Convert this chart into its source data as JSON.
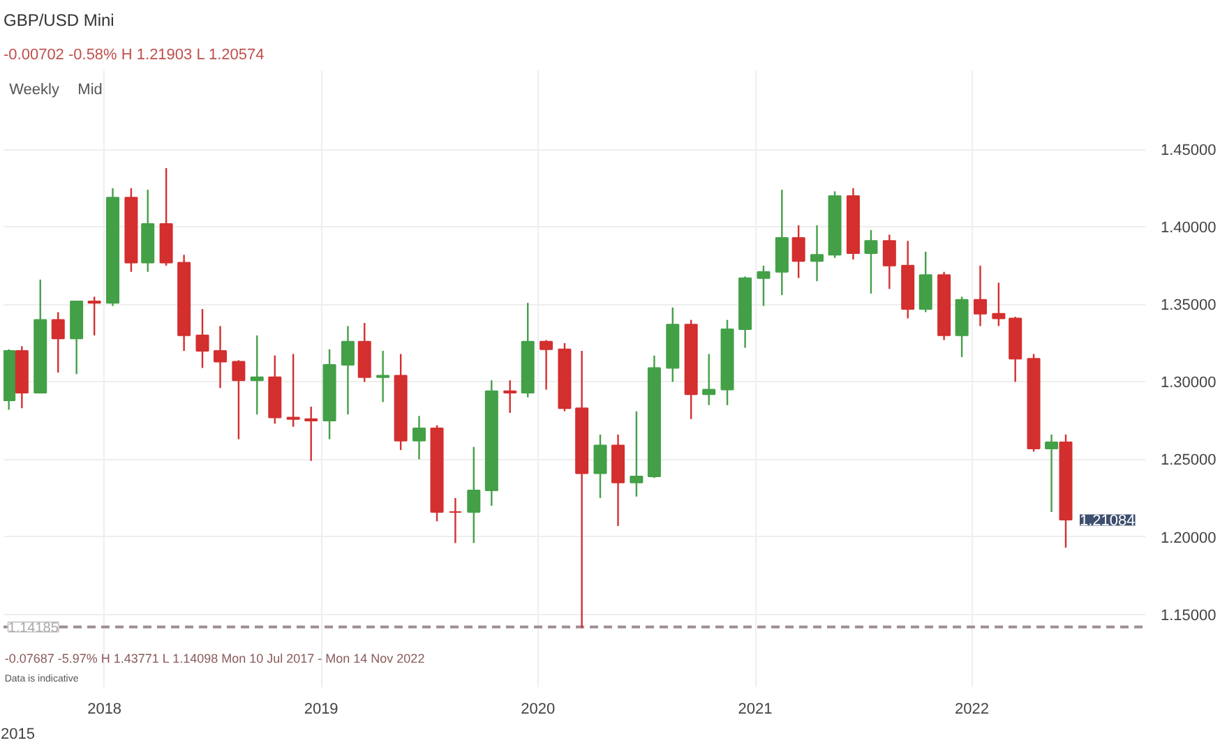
{
  "chart_data": {
    "type": "candlestick",
    "title": "GBP/USD Mini",
    "subtitle": "-0.00702  -0.58%  H 1.21903  L 1.20574",
    "annotations": [
      "Weekly",
      "Mid",
      "-0.07687  -5.97%  H 1.43771  L 1.14098  Mon 10 Jul 2017 - Mon 14 Nov 2022",
      "Data is indicative",
      "2015",
      {
        "text": "1.21084",
        "x": "2022-06-08",
        "y": 1.21084
      }
    ],
    "x": [
      "2017-07-24",
      "2017-08-15",
      "2017-09-15",
      "2017-10-15",
      "2017-11-15",
      "2017-12-15",
      "2018-01-15",
      "2018-02-15",
      "2018-03-15",
      "2018-04-15",
      "2018-05-15",
      "2018-06-15",
      "2018-07-15",
      "2018-08-15",
      "2018-09-15",
      "2018-10-15",
      "2018-11-15",
      "2018-12-15",
      "2019-01-15",
      "2019-02-15",
      "2019-03-15",
      "2019-04-15",
      "2019-05-15",
      "2019-06-15",
      "2019-07-15",
      "2019-08-15",
      "2019-09-15",
      "2019-10-15",
      "2019-11-15",
      "2019-12-15",
      "2020-01-15",
      "2020-02-15",
      "2020-03-15",
      "2020-04-15",
      "2020-05-15",
      "2020-06-15",
      "2020-07-15",
      "2020-08-15",
      "2020-09-15",
      "2020-10-15",
      "2020-11-15",
      "2020-12-15",
      "2021-01-15",
      "2021-02-15",
      "2021-03-15",
      "2021-04-15",
      "2021-05-15",
      "2021-06-15",
      "2021-07-15",
      "2021-08-15",
      "2021-09-15",
      "2021-10-15",
      "2021-11-15",
      "2021-12-15",
      "2022-01-15",
      "2022-02-15",
      "2022-03-15",
      "2022-04-15",
      "2022-05-15",
      "2022-06-08"
    ],
    "ohlc": [
      [
        1.288,
        1.321,
        1.282,
        1.32
      ],
      [
        1.32,
        1.323,
        1.283,
        1.293
      ],
      [
        1.293,
        1.366,
        1.293,
        1.34
      ],
      [
        1.34,
        1.345,
        1.306,
        1.328
      ],
      [
        1.328,
        1.352,
        1.305,
        1.352
      ],
      [
        1.352,
        1.355,
        1.33,
        1.351
      ],
      [
        1.351,
        1.425,
        1.349,
        1.419
      ],
      [
        1.419,
        1.425,
        1.371,
        1.377
      ],
      [
        1.377,
        1.424,
        1.371,
        1.402
      ],
      [
        1.402,
        1.438,
        1.375,
        1.377
      ],
      [
        1.377,
        1.382,
        1.32,
        1.33
      ],
      [
        1.33,
        1.347,
        1.309,
        1.32
      ],
      [
        1.32,
        1.336,
        1.296,
        1.313
      ],
      [
        1.313,
        1.314,
        1.263,
        1.301
      ],
      [
        1.301,
        1.33,
        1.279,
        1.303
      ],
      [
        1.303,
        1.317,
        1.273,
        1.277
      ],
      [
        1.277,
        1.318,
        1.271,
        1.276
      ],
      [
        1.276,
        1.284,
        1.249,
        1.275
      ],
      [
        1.275,
        1.321,
        1.263,
        1.311
      ],
      [
        1.311,
        1.336,
        1.279,
        1.326
      ],
      [
        1.326,
        1.338,
        1.3,
        1.303
      ],
      [
        1.303,
        1.32,
        1.287,
        1.304
      ],
      [
        1.304,
        1.318,
        1.256,
        1.262
      ],
      [
        1.262,
        1.278,
        1.25,
        1.27
      ],
      [
        1.27,
        1.272,
        1.21,
        1.216
      ],
      [
        1.216,
        1.225,
        1.196,
        1.216
      ],
      [
        1.216,
        1.258,
        1.196,
        1.23
      ],
      [
        1.23,
        1.301,
        1.22,
        1.294
      ],
      [
        1.294,
        1.301,
        1.28,
        1.293
      ],
      [
        1.293,
        1.351,
        1.29,
        1.326
      ],
      [
        1.326,
        1.327,
        1.295,
        1.321
      ],
      [
        1.321,
        1.325,
        1.281,
        1.283
      ],
      [
        1.283,
        1.32,
        1.141,
        1.241
      ],
      [
        1.241,
        1.266,
        1.225,
        1.259
      ],
      [
        1.259,
        1.266,
        1.207,
        1.235
      ],
      [
        1.235,
        1.281,
        1.226,
        1.239
      ],
      [
        1.239,
        1.317,
        1.238,
        1.309
      ],
      [
        1.309,
        1.348,
        1.3,
        1.337
      ],
      [
        1.337,
        1.34,
        1.276,
        1.292
      ],
      [
        1.292,
        1.318,
        1.285,
        1.295
      ],
      [
        1.295,
        1.34,
        1.285,
        1.334
      ],
      [
        1.334,
        1.368,
        1.322,
        1.367
      ],
      [
        1.367,
        1.375,
        1.349,
        1.371
      ],
      [
        1.371,
        1.424,
        1.356,
        1.393
      ],
      [
        1.393,
        1.401,
        1.367,
        1.378
      ],
      [
        1.378,
        1.401,
        1.365,
        1.382
      ],
      [
        1.382,
        1.423,
        1.38,
        1.42
      ],
      [
        1.42,
        1.425,
        1.379,
        1.383
      ],
      [
        1.383,
        1.398,
        1.357,
        1.391
      ],
      [
        1.391,
        1.395,
        1.36,
        1.375
      ],
      [
        1.375,
        1.391,
        1.341,
        1.347
      ],
      [
        1.347,
        1.384,
        1.345,
        1.369
      ],
      [
        1.369,
        1.371,
        1.327,
        1.33
      ],
      [
        1.33,
        1.355,
        1.316,
        1.353
      ],
      [
        1.353,
        1.375,
        1.336,
        1.344
      ],
      [
        1.344,
        1.364,
        1.336,
        1.341
      ],
      [
        1.341,
        1.342,
        1.3,
        1.315
      ],
      [
        1.315,
        1.318,
        1.255,
        1.257
      ],
      [
        1.257,
        1.266,
        1.216,
        1.261
      ],
      [
        1.261,
        1.266,
        1.193,
        1.211
      ]
    ],
    "colors": [
      "#43a047",
      "#d32f2f",
      "#43a047",
      "#d32f2f",
      "#43a047",
      "#d32f2f",
      "#43a047",
      "#d32f2f",
      "#43a047",
      "#d32f2f",
      "#d32f2f",
      "#d32f2f",
      "#d32f2f",
      "#d32f2f",
      "#43a047",
      "#d32f2f",
      "#d32f2f",
      "#d32f2f",
      "#43a047",
      "#43a047",
      "#d32f2f",
      "#43a047",
      "#d32f2f",
      "#43a047",
      "#d32f2f",
      "#d32f2f",
      "#43a047",
      "#43a047",
      "#d32f2f",
      "#43a047",
      "#d32f2f",
      "#d32f2f",
      "#d32f2f",
      "#43a047",
      "#d32f2f",
      "#43a047",
      "#43a047",
      "#43a047",
      "#d32f2f",
      "#43a047",
      "#43a047",
      "#43a047",
      "#43a047",
      "#43a047",
      "#d32f2f",
      "#43a047",
      "#43a047",
      "#d32f2f",
      "#43a047",
      "#d32f2f",
      "#d32f2f",
      "#43a047",
      "#d32f2f",
      "#43a047",
      "#d32f2f",
      "#d32f2f",
      "#d32f2f",
      "#d32f2f",
      "#43a047",
      "#d32f2f"
    ],
    "xlim": [
      "2017-07-15",
      "2022-10-20"
    ],
    "xticks": [
      {
        "value": "2018-01-01",
        "label": "2018"
      },
      {
        "value": "2019-01-01",
        "label": "2019"
      },
      {
        "value": "2020-01-01",
        "label": "2020"
      },
      {
        "value": "2021-01-01",
        "label": "2021"
      },
      {
        "value": "2022-01-01",
        "label": "2022"
      }
    ],
    "ylim": [
      1.103,
      1.501
    ],
    "yticks": [
      {
        "value": 1.15,
        "label": "1.15000"
      },
      {
        "value": 1.2,
        "label": "1.20000"
      },
      {
        "value": 1.25,
        "label": "1.25000"
      },
      {
        "value": 1.3,
        "label": "1.30000"
      },
      {
        "value": 1.35,
        "label": "1.35000"
      },
      {
        "value": 1.4,
        "label": "1.40000"
      },
      {
        "value": 1.45,
        "label": "1.45000"
      }
    ],
    "ref_lines": [
      {
        "axis": "y",
        "value": 1.14185,
        "label": "1.14185",
        "color": "#9e8e96",
        "line_style": "dashed"
      }
    ],
    "grid": true
  }
}
